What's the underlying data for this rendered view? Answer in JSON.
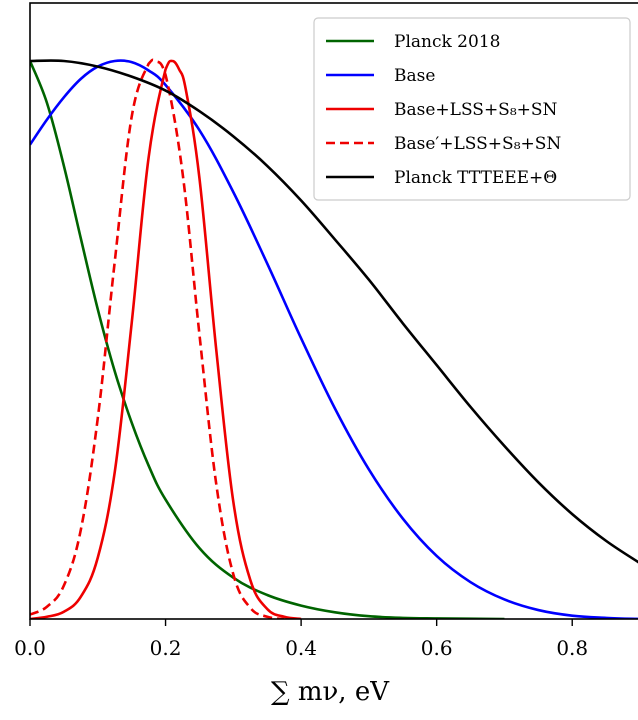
{
  "chart_data": {
    "type": "line",
    "title": "",
    "xlabel": "∑ mν, eV",
    "ylabel": "",
    "xlim": [
      0.0,
      0.9
    ],
    "ylim": [
      0.0,
      1.0
    ],
    "xticks": [
      0.0,
      0.2,
      0.4,
      0.6,
      0.8
    ],
    "xtick_labels": [
      "0.0",
      "0.2",
      "0.4",
      "0.6",
      "0.8"
    ],
    "grid": false,
    "legend_position": "top-right",
    "series": [
      {
        "name": "Planck 2018",
        "color": "#006400",
        "dash": "solid",
        "x": [
          0.0,
          0.025,
          0.05,
          0.075,
          0.1,
          0.125,
          0.15,
          0.175,
          0.2,
          0.25,
          0.3,
          0.35,
          0.4,
          0.45,
          0.5,
          0.55,
          0.6,
          0.7
        ],
        "y": [
          1.0,
          0.925,
          0.812,
          0.682,
          0.555,
          0.444,
          0.352,
          0.275,
          0.214,
          0.127,
          0.074,
          0.043,
          0.024,
          0.012,
          0.005,
          0.002,
          0.001,
          0.0
        ]
      },
      {
        "name": "Base",
        "color": "#0000ff",
        "dash": "solid",
        "x": [
          0.0,
          0.025,
          0.05,
          0.075,
          0.1,
          0.125,
          0.15,
          0.175,
          0.2,
          0.25,
          0.3,
          0.35,
          0.4,
          0.45,
          0.5,
          0.55,
          0.6,
          0.65,
          0.7,
          0.75,
          0.8,
          0.85,
          0.9
        ],
        "y": [
          0.85,
          0.895,
          0.935,
          0.968,
          0.99,
          1.0,
          0.998,
          0.983,
          0.957,
          0.876,
          0.765,
          0.637,
          0.503,
          0.377,
          0.268,
          0.18,
          0.113,
          0.066,
          0.035,
          0.016,
          0.006,
          0.002,
          0.0
        ]
      },
      {
        "name": "Base+LSS+S₈+SN",
        "color": "#ee0000",
        "dash": "solid",
        "x": [
          0.0,
          0.025,
          0.05,
          0.075,
          0.1,
          0.125,
          0.15,
          0.175,
          0.2,
          0.21,
          0.22,
          0.23,
          0.25,
          0.275,
          0.3,
          0.325,
          0.35,
          0.375,
          0.4
        ],
        "y": [
          0.0,
          0.004,
          0.013,
          0.04,
          0.11,
          0.263,
          0.53,
          0.827,
          0.985,
          1.0,
          0.985,
          0.948,
          0.79,
          0.48,
          0.21,
          0.07,
          0.018,
          0.004,
          0.0
        ]
      },
      {
        "name": "Base′+LSS+S₈+SN",
        "color": "#ee0000",
        "dash": "dashed",
        "x": [
          0.0,
          0.025,
          0.05,
          0.075,
          0.1,
          0.125,
          0.15,
          0.175,
          0.185,
          0.2,
          0.225,
          0.25,
          0.275,
          0.3,
          0.325,
          0.35,
          0.375
        ],
        "y": [
          0.008,
          0.022,
          0.06,
          0.16,
          0.36,
          0.64,
          0.9,
          0.995,
          1.0,
          0.975,
          0.8,
          0.51,
          0.24,
          0.08,
          0.02,
          0.004,
          0.0
        ]
      },
      {
        "name": "Planck TTTEEE+Θ",
        "color": "#000000",
        "dash": "solid",
        "x": [
          0.0,
          0.05,
          0.1,
          0.15,
          0.2,
          0.25,
          0.3,
          0.35,
          0.4,
          0.45,
          0.5,
          0.55,
          0.6,
          0.65,
          0.7,
          0.75,
          0.8,
          0.85,
          0.9
        ],
        "y": [
          1.0,
          1.0,
          0.99,
          0.972,
          0.947,
          0.91,
          0.865,
          0.812,
          0.75,
          0.68,
          0.608,
          0.53,
          0.455,
          0.38,
          0.31,
          0.245,
          0.188,
          0.14,
          0.1
        ]
      }
    ]
  }
}
